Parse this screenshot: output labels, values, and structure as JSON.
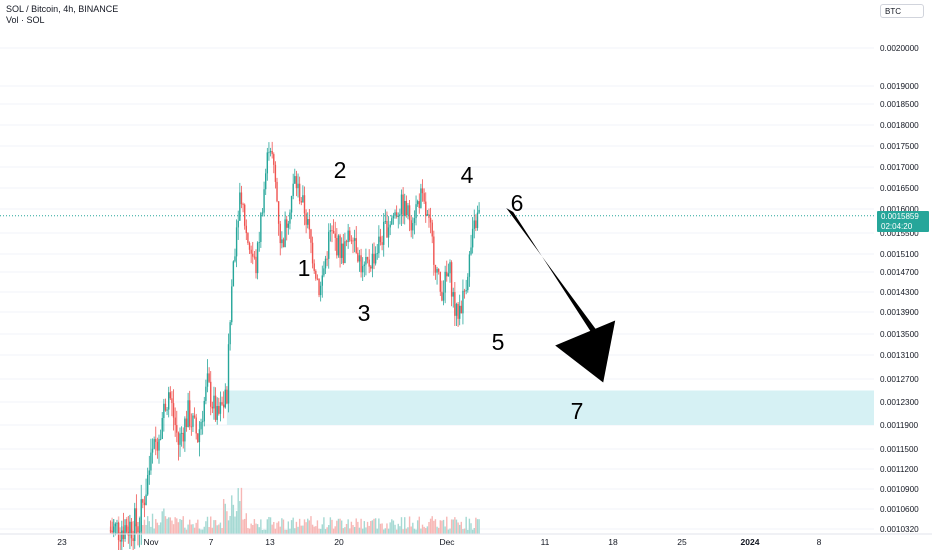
{
  "header": {
    "symbol_line": "SOL / Bitcoin, 4h, BINANCE",
    "volume_line": "Vol · SOL",
    "currency": "BTC"
  },
  "price_tag": {
    "price": "0.0015859",
    "countdown": "02:04:20"
  },
  "colors": {
    "up": "#26a69a",
    "down": "#ef5350",
    "up_volume": "#a5d9d3",
    "down_volume": "#f7b7b5",
    "zone": "#d6f1f4",
    "last_price_line": "#26a69a"
  },
  "chart_data": {
    "type": "candlestick",
    "interval": "4h",
    "y_unit": "BTC",
    "ylim": [
      0.001,
      0.0021
    ],
    "y_ticks": [
      "0.0020000",
      "0.0019000",
      "0.0018500",
      "0.0018000",
      "0.0017500",
      "0.0017000",
      "0.0016500",
      "0.0016000",
      "0.0015500",
      "0.0015100",
      "0.0014700",
      "0.0014300",
      "0.0013900",
      "0.0013500",
      "0.0013100",
      "0.0012700",
      "0.0012300",
      "0.0011900",
      "0.0011500",
      "0.0011200",
      "0.0010900",
      "0.0010600",
      "0.0010320"
    ],
    "x_ticks": [
      "23",
      "Nov",
      "7",
      "13",
      "20",
      "Dec",
      "11",
      "18",
      "25",
      "2024",
      "8"
    ],
    "last_price": 0.0015859,
    "zone": {
      "low": 0.00119,
      "high": 0.00125
    },
    "wave_labels": [
      {
        "label": "1",
        "date": "Nov 14",
        "price": 0.00148
      },
      {
        "label": "2",
        "date": "Nov 18",
        "price": 0.00169
      },
      {
        "label": "3",
        "date": "Nov 21",
        "price": 0.00139
      },
      {
        "label": "4",
        "date": "Dec 1",
        "price": 0.00168
      },
      {
        "label": "5",
        "date": "Dec 5",
        "price": 0.00135
      },
      {
        "label": "6",
        "date": "Dec 7",
        "price": 0.00161
      },
      {
        "label": "7",
        "date": "Dec 16",
        "price": 0.00122
      }
    ],
    "projection_arrow": {
      "from_date": "Dec 8",
      "from_price": 0.0016,
      "to_date": "Dec 18",
      "to_price": 0.00125
    },
    "path_points": [
      [
        "Oct 28",
        0.00103
      ],
      [
        "Oct 31",
        0.00104
      ],
      [
        "Nov 1",
        0.00112
      ],
      [
        "Nov 2",
        0.00118
      ],
      [
        "Nov 3",
        0.00125
      ],
      [
        "Nov 4",
        0.00116
      ],
      [
        "Nov 5",
        0.00121
      ],
      [
        "Nov 6",
        0.00117
      ],
      [
        "Nov 7",
        0.00126
      ],
      [
        "Nov 8",
        0.0012
      ],
      [
        "Nov 9",
        0.00124
      ],
      [
        "Nov 9.6",
        0.00148
      ],
      [
        "Nov 10.4",
        0.00165
      ],
      [
        "Nov 11",
        0.00155
      ],
      [
        "Nov 12",
        0.00148
      ],
      [
        "Nov 12.6",
        0.0016
      ],
      [
        "Nov 13.4",
        0.00177
      ],
      [
        "Nov 14",
        0.00166
      ],
      [
        "Nov 14.6",
        0.00152
      ],
      [
        "Nov 15.4",
        0.0016
      ],
      [
        "Nov 16",
        0.00167
      ],
      [
        "Nov 17",
        0.0016
      ],
      [
        "Nov 18",
        0.00149
      ],
      [
        "Nov 18.6",
        0.00143
      ],
      [
        "Nov 19.6",
        0.00155
      ],
      [
        "Nov 21",
        0.00151
      ],
      [
        "Nov 22",
        0.00156
      ],
      [
        "Nov 23",
        0.00147
      ],
      [
        "Nov 24",
        0.0015
      ],
      [
        "Nov 25.6",
        0.00157
      ],
      [
        "Nov 27",
        0.00161
      ],
      [
        "Nov 28",
        0.00158
      ],
      [
        "Nov 29",
        0.00163
      ],
      [
        "Nov 30",
        0.00155
      ],
      [
        "Dec 1",
        0.00143
      ],
      [
        "Dec 2",
        0.00147
      ],
      [
        "Dec 2.6",
        0.00138
      ],
      [
        "Dec 3.4",
        0.00142
      ],
      [
        "Dec 4",
        0.0015
      ],
      [
        "Dec 4.6",
        0.00157
      ],
      [
        "Dec 5",
        0.00159
      ]
    ],
    "volume_note": "volume histogram below price, spike near Nov 9-10"
  }
}
